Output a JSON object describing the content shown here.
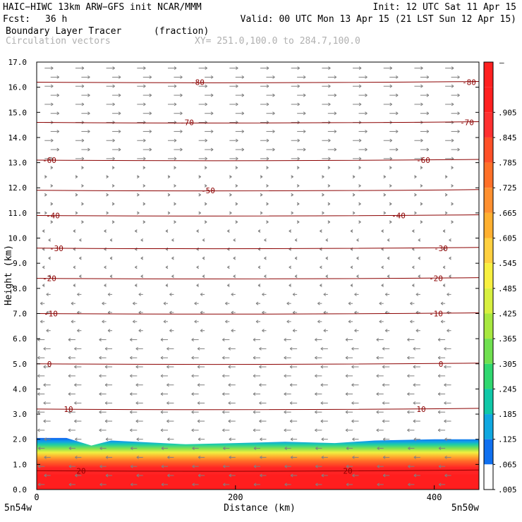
{
  "header": {
    "left_line1": "HAIC−HIWC 13km ARW−GFS init   NCAR/MMM",
    "right_line1": "Init: 12 UTC Sat 11 Apr 15",
    "fcst_label": "Fcst:",
    "fcst_value": "36 h",
    "valid": "Valid: 00 UTC Mon 13 Apr 15 (21 LST Sun 12 Apr 15)",
    "field_name": "Boundary Layer Tracer",
    "field_units": "(fraction)",
    "vector_label": "Circulation vectors",
    "xy_label": "XY= 251.0,100.0 to 284.7,100.0"
  },
  "chart_data": {
    "type": "area",
    "title": "Boundary Layer Tracer",
    "xlabel": "Distance (km)",
    "ylabel": "Height (km)",
    "xlim": [
      0,
      445
    ],
    "ylim": [
      0,
      17
    ],
    "x_ticks": [
      0,
      200,
      400
    ],
    "y_ticks": [
      0.0,
      1.0,
      2.0,
      3.0,
      4.0,
      5.0,
      6.0,
      7.0,
      8.0,
      9.0,
      10.0,
      11.0,
      12.0,
      13.0,
      14.0,
      15.0,
      16.0,
      17.0
    ],
    "y_tick_labels": [
      "0.0",
      "1.0",
      "2.0",
      "3.0",
      "4.0",
      "5.0",
      "6.0",
      "7.0",
      "8.0",
      "9.0",
      "10.0",
      "11.0",
      "12.0",
      "13.0",
      "14.0",
      "15.0",
      "16.0",
      "17.0"
    ],
    "x_corner_labels": {
      "left": "5n54w",
      "right": "5n50w"
    },
    "temperature_contours": [
      {
        "label": "-80",
        "height_km": 16.2
      },
      {
        "label": "-70",
        "height_km": 14.6
      },
      {
        "label": "-60",
        "height_km": 13.1
      },
      {
        "label": "-50",
        "height_km": 11.9
      },
      {
        "label": "-40",
        "height_km": 10.9
      },
      {
        "label": "-30",
        "height_km": 9.6
      },
      {
        "label": "-20",
        "height_km": 8.4
      },
      {
        "label": "-10",
        "height_km": 7.0
      },
      {
        "label": "0",
        "height_km": 5.0
      },
      {
        "label": "10",
        "height_km": 3.2
      },
      {
        "label": "20",
        "height_km": 0.75
      }
    ],
    "tracer_top_km": [
      {
        "x": 0,
        "top": 2.05
      },
      {
        "x": 30,
        "top": 2.05
      },
      {
        "x": 55,
        "top": 1.75
      },
      {
        "x": 75,
        "top": 1.95
      },
      {
        "x": 100,
        "top": 1.9
      },
      {
        "x": 150,
        "top": 1.8
      },
      {
        "x": 200,
        "top": 1.85
      },
      {
        "x": 250,
        "top": 1.9
      },
      {
        "x": 300,
        "top": 1.85
      },
      {
        "x": 340,
        "top": 1.95
      },
      {
        "x": 400,
        "top": 2.0
      },
      {
        "x": 445,
        "top": 2.0
      }
    ],
    "colorbar": {
      "labels": [
        ".905",
        ".845",
        ".785",
        ".725",
        ".665",
        ".605",
        ".545",
        ".485",
        ".425",
        ".365",
        ".305",
        ".245",
        ".185",
        ".125",
        ".065",
        ".005"
      ],
      "top_label": "–",
      "colors": [
        "#ff2020",
        "#ff2020",
        "#ff3030",
        "#ff5028",
        "#ff7028",
        "#ff9030",
        "#ffb030",
        "#ffd040",
        "#f8f040",
        "#d8f040",
        "#a8e840",
        "#70e050",
        "#30d870",
        "#10c8a8",
        "#10a8e0",
        "#1070f0",
        "#ffffff"
      ]
    },
    "vector_color": "#808080",
    "contour_color": "#8b0000"
  }
}
